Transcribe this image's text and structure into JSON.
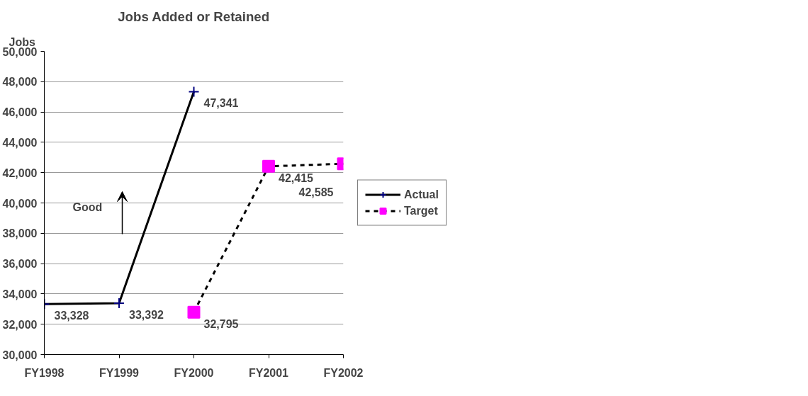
{
  "chart_data": {
    "type": "line",
    "title": "Jobs Added or Retained",
    "ylabel": "Jobs",
    "categories": [
      "FY1998",
      "FY1999",
      "FY2000",
      "FY2001",
      "FY2002"
    ],
    "series": [
      {
        "name": "Actual",
        "color": "#000000",
        "colors": [
          "#000080",
          "#000080",
          "#000080",
          null,
          null
        ],
        "values": [
          33328,
          33392,
          47341,
          null,
          null
        ],
        "value_labels": [
          "33,328",
          "33,392",
          "47,341",
          null,
          null
        ],
        "marker": "cross",
        "line_style": "solid"
      },
      {
        "name": "Target",
        "color": "#000000",
        "colors": [
          null,
          null,
          "#ff00ff",
          "#ff00ff",
          "#ff00ff"
        ],
        "values": [
          null,
          null,
          32795,
          42415,
          42585
        ],
        "value_labels": [
          null,
          null,
          "32,795",
          "42,415",
          "42,585"
        ],
        "marker": "square",
        "line_style": "dashed"
      }
    ],
    "ylim": [
      30000,
      50000
    ],
    "yticks": [
      {
        "value": 30000,
        "label": "30,000"
      },
      {
        "value": 32000,
        "label": "32,000"
      },
      {
        "value": 34000,
        "label": "34,000"
      },
      {
        "value": 36000,
        "label": "36,000"
      },
      {
        "value": 38000,
        "label": "38,000"
      },
      {
        "value": 40000,
        "label": "40,000"
      },
      {
        "value": 42000,
        "label": "42,000"
      },
      {
        "value": 44000,
        "label": "44,000"
      },
      {
        "value": 46000,
        "label": "46,000"
      },
      {
        "value": 48000,
        "label": "48,000"
      },
      {
        "value": 50000,
        "label": "50,000"
      }
    ],
    "grid": "y",
    "legend": "right",
    "annotations": [
      "Good"
    ]
  }
}
